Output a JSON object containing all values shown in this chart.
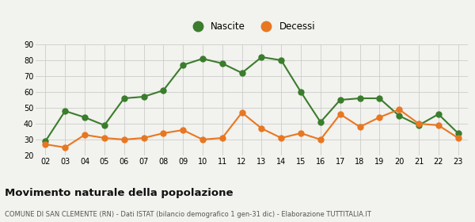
{
  "years": [
    2,
    3,
    4,
    5,
    6,
    7,
    8,
    9,
    10,
    11,
    12,
    13,
    14,
    15,
    16,
    17,
    18,
    19,
    20,
    21,
    22,
    23
  ],
  "nascite": [
    29,
    48,
    44,
    39,
    56,
    57,
    61,
    77,
    81,
    78,
    72,
    82,
    80,
    60,
    41,
    55,
    56,
    56,
    45,
    39,
    46,
    34
  ],
  "decessi": [
    27,
    25,
    33,
    31,
    30,
    31,
    34,
    36,
    30,
    31,
    47,
    37,
    31,
    34,
    30,
    46,
    38,
    44,
    49,
    40,
    39,
    31
  ],
  "nascite_color": "#3a7d2c",
  "decessi_color": "#e87722",
  "background_color": "#f2f2ee",
  "grid_color": "#cccccc",
  "ylim": [
    20,
    90
  ],
  "yticks": [
    20,
    30,
    40,
    50,
    60,
    70,
    80,
    90
  ],
  "title": "Movimento naturale della popolazione",
  "subtitle": "COMUNE DI SAN CLEMENTE (RN) - Dati ISTAT (bilancio demografico 1 gen-31 dic) - Elaborazione TUTTITALIA.IT",
  "legend_nascite": "Nascite",
  "legend_decessi": "Decessi",
  "marker_size": 5,
  "line_width": 1.5
}
